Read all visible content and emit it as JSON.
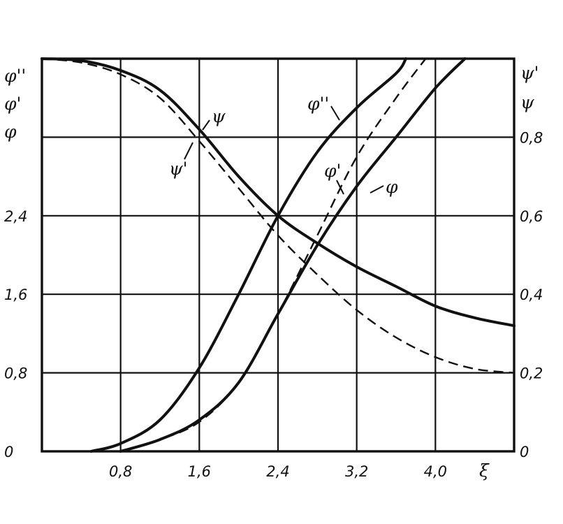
{
  "chart_data": {
    "type": "line",
    "x_axis": {
      "label": "ξ",
      "range": [
        0,
        4.8
      ],
      "tick_values": [
        0.8,
        1.6,
        2.4,
        3.2,
        4.0
      ],
      "tick_labels": [
        "0,8",
        "1,6",
        "2,4",
        "3,2",
        "4,0"
      ]
    },
    "y_left": {
      "labels": [
        "φ''",
        "φ'",
        "φ"
      ],
      "range": [
        0,
        4.0
      ],
      "tick_values": [
        0,
        0.8,
        1.6,
        2.4
      ],
      "tick_labels": [
        "0",
        "0,8",
        "1,6",
        "2,4"
      ]
    },
    "y_right": {
      "labels": [
        "ψ'",
        "ψ"
      ],
      "range": [
        0,
        1.0
      ],
      "tick_values": [
        0,
        0.2,
        0.4,
        0.6,
        0.8
      ],
      "tick_labels": [
        "0",
        "0,2",
        "0,4",
        "0,6",
        "0,8"
      ]
    },
    "grid": true,
    "series": [
      {
        "name": "ψ",
        "axis": "right",
        "style": "solid",
        "x": [
          0,
          0.4,
          0.8,
          1.2,
          1.6,
          2.0,
          2.4,
          2.8,
          3.2,
          3.6,
          4.0,
          4.4,
          4.8
        ],
        "y": [
          1.0,
          0.995,
          0.97,
          0.92,
          0.82,
          0.7,
          0.6,
          0.53,
          0.47,
          0.42,
          0.37,
          0.34,
          0.32
        ]
      },
      {
        "name": "ψ'",
        "axis": "right",
        "style": "dashed",
        "x": [
          0,
          0.4,
          0.8,
          1.2,
          1.6,
          2.0,
          2.4,
          2.8,
          3.2,
          3.6,
          4.0,
          4.4,
          4.8
        ],
        "y": [
          1.0,
          0.99,
          0.96,
          0.9,
          0.79,
          0.67,
          0.55,
          0.45,
          0.36,
          0.29,
          0.24,
          0.21,
          0.2
        ]
      },
      {
        "name": "φ''",
        "axis": "left",
        "style": "solid",
        "x": [
          0.5,
          0.8,
          1.2,
          1.6,
          2.0,
          2.4,
          2.8,
          3.2,
          3.6,
          3.7
        ],
        "y": [
          0.0,
          0.08,
          0.32,
          0.85,
          1.6,
          2.4,
          3.05,
          3.5,
          3.85,
          4.0
        ]
      },
      {
        "name": "φ'",
        "axis": "left",
        "style": "dashed",
        "x": [
          0.8,
          1.2,
          1.6,
          2.0,
          2.4,
          2.8,
          3.2,
          3.6,
          3.9
        ],
        "y": [
          0.0,
          0.12,
          0.3,
          0.7,
          1.4,
          2.2,
          3.0,
          3.6,
          4.0
        ]
      },
      {
        "name": "φ",
        "axis": "left",
        "style": "solid",
        "x": [
          0.8,
          1.2,
          1.6,
          2.0,
          2.4,
          2.8,
          3.2,
          3.6,
          4.0,
          4.3
        ],
        "y": [
          0.0,
          0.12,
          0.32,
          0.7,
          1.4,
          2.1,
          2.7,
          3.2,
          3.7,
          4.0
        ]
      }
    ],
    "curve_labels": [
      {
        "text": "ψ",
        "series": "ψ"
      },
      {
        "text": "ψ'",
        "series": "ψ'"
      },
      {
        "text": "φ''",
        "series": "φ''"
      },
      {
        "text": "φ'",
        "series": "φ'"
      },
      {
        "text": "φ",
        "series": "φ"
      }
    ]
  }
}
